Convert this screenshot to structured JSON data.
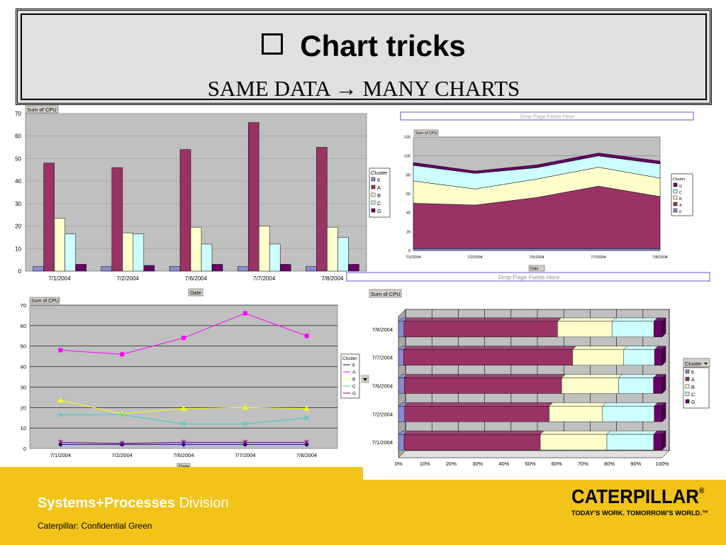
{
  "slide": {
    "title": "Chart tricks",
    "subtitle": "SAME DATA → MANY CHARTS"
  },
  "footer": {
    "division_bold": "Systems+Processes",
    "division_rest": " Division",
    "confidential": "Caterpillar: Confidential Green",
    "logo_word": "CATERPILLAR",
    "logo_reg": "®",
    "logo_tagline": "TODAY’S WORK. TOMORROW’S WORLD.™"
  },
  "colors": {
    "6": "#8a8ad0",
    "A": "#993366",
    "B": "#ffffcc",
    "C": "#ccffff",
    "G": "#660066",
    "plot_bg": "#c0c0c0",
    "line_6": "#000080",
    "line_A": "#ff00ff",
    "line_B": "#ffff00",
    "line_C": "#33cccc",
    "line_G": "#800080",
    "footer": "#f2c319"
  },
  "chart_data": [
    {
      "type": "bar",
      "field_button": "Sum of CPU",
      "x_field": "Date",
      "categories": [
        "7/1/2004",
        "7/2/2004",
        "7/6/2004",
        "7/7/2004",
        "7/8/2004"
      ],
      "legend_title": "Cluster",
      "series": [
        {
          "name": "6",
          "values": [
            2,
            2,
            2,
            2,
            2
          ]
        },
        {
          "name": "A",
          "values": [
            48,
            46,
            54,
            66,
            55
          ]
        },
        {
          "name": "B",
          "values": [
            23.5,
            17,
            19.5,
            20,
            19.5
          ]
        },
        {
          "name": "C",
          "values": [
            16.5,
            16.5,
            12,
            12,
            15
          ]
        },
        {
          "name": "G",
          "values": [
            3,
            2.5,
            3,
            3,
            3
          ]
        }
      ],
      "yticks": [
        0,
        10,
        20,
        30,
        40,
        50,
        60,
        70
      ],
      "ylim": [
        0,
        70
      ]
    },
    {
      "type": "area",
      "stacked": true,
      "page_field_text": "Drop Page Fields Here",
      "field_button": "Sum of CPU",
      "x_field": "Date",
      "categories": [
        "7/1/2004",
        "7/2/2004",
        "7/6/2004",
        "7/7/2004",
        "7/8/2004"
      ],
      "legend_title": "Cluster",
      "legend_order": [
        "G",
        "C",
        "B",
        "A",
        "6"
      ],
      "series": [
        {
          "name": "6",
          "values": [
            2,
            2,
            2,
            2,
            2
          ]
        },
        {
          "name": "A",
          "values": [
            48,
            46,
            54,
            66,
            55
          ]
        },
        {
          "name": "B",
          "values": [
            23.5,
            17,
            19.5,
            20,
            19.5
          ]
        },
        {
          "name": "C",
          "values": [
            16.5,
            16.5,
            12,
            12,
            15
          ]
        },
        {
          "name": "G",
          "values": [
            3,
            2.5,
            3,
            3,
            3
          ]
        }
      ],
      "yticks": [
        0,
        20,
        40,
        60,
        80,
        100,
        120
      ],
      "ylim": [
        0,
        120
      ]
    },
    {
      "type": "line",
      "field_button": "Sum of CPU",
      "x_field": "Date",
      "categories": [
        "7/1/2004",
        "7/2/2004",
        "7/6/2004",
        "7/7/2004",
        "7/8/2004"
      ],
      "legend_title": "Cluster",
      "series": [
        {
          "name": "6",
          "values": [
            2,
            2,
            2,
            2,
            2
          ]
        },
        {
          "name": "A",
          "values": [
            48,
            46,
            54,
            66,
            55
          ]
        },
        {
          "name": "B",
          "values": [
            23.5,
            17,
            19.5,
            20,
            19.5
          ]
        },
        {
          "name": "C",
          "values": [
            16.5,
            16.5,
            12,
            12,
            15
          ]
        },
        {
          "name": "G",
          "values": [
            3,
            2.5,
            3,
            3,
            3
          ]
        }
      ],
      "yticks": [
        0,
        10,
        20,
        30,
        40,
        50,
        60,
        70
      ],
      "ylim": [
        0,
        70
      ]
    },
    {
      "type": "bar",
      "orientation": "horizontal",
      "stacked": "percent",
      "page_field_text": "Drop Page Fields Here",
      "field_button": "Sum of CPU",
      "categories": [
        "7/8/2004",
        "7/7/2004",
        "7/6/2004",
        "7/2/2004",
        "7/1/2004"
      ],
      "legend_title": "Cluster",
      "series": [
        {
          "name": "6",
          "values": [
            2,
            2,
            2,
            2,
            2
          ]
        },
        {
          "name": "A",
          "values": [
            55,
            66,
            54,
            46,
            48
          ]
        },
        {
          "name": "B",
          "values": [
            19.5,
            20,
            19.5,
            17,
            23.5
          ]
        },
        {
          "name": "C",
          "values": [
            15,
            12,
            12,
            16.5,
            16.5
          ]
        },
        {
          "name": "G",
          "values": [
            3,
            3,
            3,
            2.5,
            3
          ]
        }
      ],
      "xticks": [
        "0%",
        "10%",
        "20%",
        "30%",
        "40%",
        "50%",
        "60%",
        "70%",
        "80%",
        "90%",
        "100%"
      ],
      "xlim": [
        0,
        100
      ]
    }
  ]
}
